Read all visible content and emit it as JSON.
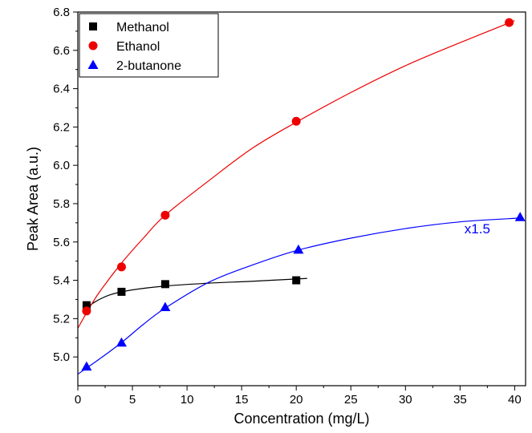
{
  "chart_data": {
    "type": "scatter",
    "xlabel": "Concentration (mg/L)",
    "ylabel": "Peak Area (a.u.)",
    "xlim": [
      0,
      41
    ],
    "ylim": [
      4.85,
      6.8
    ],
    "xticks": [
      0,
      5,
      10,
      15,
      20,
      25,
      30,
      35,
      40
    ],
    "yticks": [
      5.0,
      5.2,
      5.4,
      5.6,
      5.8,
      6.0,
      6.2,
      6.4,
      6.6,
      6.8
    ],
    "xtick_labels": [
      "0",
      "5",
      "10",
      "15",
      "20",
      "25",
      "30",
      "35",
      "40"
    ],
    "ytick_labels": [
      "5.0",
      "5.2",
      "5.4",
      "5.6",
      "5.8",
      "6.0",
      "6.2",
      "6.4",
      "6.6",
      "6.8"
    ],
    "grid": false,
    "legend_position": "top-left",
    "series": [
      {
        "name": "Methanol",
        "marker": "square",
        "color": "#000000",
        "points": [
          [
            0.8,
            5.27
          ],
          [
            4,
            5.34
          ],
          [
            8,
            5.38
          ],
          [
            20,
            5.4
          ]
        ],
        "fit": [
          [
            0.8,
            5.25
          ],
          [
            1.5,
            5.285
          ],
          [
            3,
            5.325
          ],
          [
            5,
            5.35
          ],
          [
            8,
            5.37
          ],
          [
            12,
            5.385
          ],
          [
            16,
            5.395
          ],
          [
            21,
            5.41
          ]
        ]
      },
      {
        "name": "Ethanol",
        "marker": "circle",
        "color": "#ee0000",
        "points": [
          [
            0.8,
            5.24
          ],
          [
            4,
            5.47
          ],
          [
            8,
            5.74
          ],
          [
            20,
            6.23
          ],
          [
            39.5,
            6.745
          ]
        ],
        "fit": [
          [
            0,
            5.15
          ],
          [
            1,
            5.25
          ],
          [
            2,
            5.34
          ],
          [
            4,
            5.49
          ],
          [
            6,
            5.62
          ],
          [
            8,
            5.74
          ],
          [
            12,
            5.92
          ],
          [
            16,
            6.09
          ],
          [
            20,
            6.225
          ],
          [
            25,
            6.38
          ],
          [
            30,
            6.52
          ],
          [
            35,
            6.64
          ],
          [
            40,
            6.755
          ]
        ]
      },
      {
        "name": "2-butanone",
        "marker": "triangle",
        "color": "#0000ff",
        "points": [
          [
            0.8,
            4.95
          ],
          [
            4,
            5.075
          ],
          [
            8,
            5.26
          ],
          [
            20.2,
            5.56
          ],
          [
            40.5,
            5.73
          ]
        ],
        "fit": [
          [
            0,
            4.91
          ],
          [
            2,
            4.99
          ],
          [
            4,
            5.075
          ],
          [
            6,
            5.17
          ],
          [
            8,
            5.255
          ],
          [
            12,
            5.39
          ],
          [
            16,
            5.48
          ],
          [
            20,
            5.555
          ],
          [
            25,
            5.62
          ],
          [
            30,
            5.67
          ],
          [
            35,
            5.705
          ],
          [
            40.5,
            5.725
          ]
        ]
      }
    ],
    "annotations": [
      {
        "text": "x1.5",
        "x": 35.4,
        "y": 5.645,
        "color": "#0000ff"
      }
    ]
  }
}
